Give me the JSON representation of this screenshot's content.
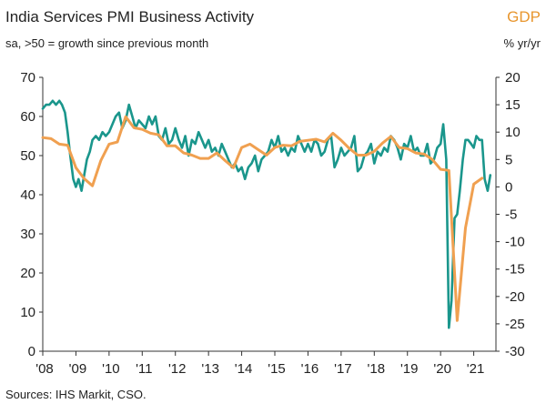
{
  "chart_data": {
    "type": "line",
    "title": "India Services PMI Business Activity",
    "subtitle": "sa, >50 = growth since previous month",
    "right_title": "GDP",
    "right_ylabel": "% yr/yr",
    "source": "Sources: IHS Markit, CSO.",
    "x_ticks": [
      "'08",
      "'09",
      "'10",
      "'11",
      "'12",
      "'13",
      "'14",
      "'15",
      "'16",
      "'17",
      "'18",
      "'19",
      "'20",
      "'21"
    ],
    "xlim": [
      2008.0,
      2021.67
    ],
    "left_axis": {
      "ylim": [
        0,
        70
      ],
      "ticks": [
        0,
        10,
        20,
        30,
        40,
        50,
        60,
        70
      ]
    },
    "right_axis": {
      "ylim": [
        -30,
        20
      ],
      "ticks": [
        -30,
        -25,
        -20,
        -15,
        -10,
        -5,
        0,
        5,
        10,
        15,
        20
      ]
    },
    "grid": false,
    "colors": {
      "pmi": "#1a968c",
      "gdp": "#f0a050",
      "title_gdp": "#e8962e",
      "axis": "#333333"
    },
    "series": [
      {
        "key": "pmi",
        "axis": "left",
        "x": [
          2008.0,
          2008.1,
          2008.2,
          2008.3,
          2008.4,
          2008.5,
          2008.58,
          2008.67,
          2008.75,
          2008.83,
          2008.92,
          2009.0,
          2009.08,
          2009.17,
          2009.25,
          2009.33,
          2009.42,
          2009.5,
          2009.6,
          2009.7,
          2009.8,
          2009.9,
          2010.0,
          2010.1,
          2010.2,
          2010.3,
          2010.4,
          2010.5,
          2010.6,
          2010.7,
          2010.8,
          2010.9,
          2011.0,
          2011.1,
          2011.2,
          2011.3,
          2011.4,
          2011.5,
          2011.6,
          2011.7,
          2011.8,
          2011.9,
          2012.0,
          2012.1,
          2012.2,
          2012.3,
          2012.4,
          2012.5,
          2012.6,
          2012.7,
          2012.8,
          2012.9,
          2013.0,
          2013.1,
          2013.2,
          2013.3,
          2013.4,
          2013.5,
          2013.6,
          2013.7,
          2013.8,
          2013.9,
          2014.0,
          2014.1,
          2014.2,
          2014.3,
          2014.4,
          2014.5,
          2014.6,
          2014.7,
          2014.8,
          2014.9,
          2015.0,
          2015.1,
          2015.2,
          2015.3,
          2015.4,
          2015.5,
          2015.6,
          2015.7,
          2015.8,
          2015.9,
          2016.0,
          2016.1,
          2016.2,
          2016.3,
          2016.4,
          2016.5,
          2016.6,
          2016.7,
          2016.8,
          2016.9,
          2017.0,
          2017.1,
          2017.2,
          2017.3,
          2017.4,
          2017.5,
          2017.6,
          2017.7,
          2017.8,
          2017.9,
          2018.0,
          2018.1,
          2018.2,
          2018.3,
          2018.4,
          2018.5,
          2018.6,
          2018.7,
          2018.8,
          2018.9,
          2019.0,
          2019.1,
          2019.2,
          2019.3,
          2019.4,
          2019.5,
          2019.6,
          2019.7,
          2019.8,
          2019.9,
          2020.0,
          2020.08,
          2020.17,
          2020.25,
          2020.33,
          2020.42,
          2020.5,
          2020.58,
          2020.67,
          2020.75,
          2020.83,
          2020.92,
          2021.0,
          2021.08,
          2021.17,
          2021.25,
          2021.33,
          2021.42,
          2021.5
        ],
        "y": [
          62,
          63,
          63,
          64,
          63,
          64,
          63,
          61,
          56,
          50,
          44,
          42,
          44,
          41,
          45,
          49,
          51,
          54,
          55,
          54,
          56,
          55,
          56,
          58,
          60,
          61,
          57,
          59,
          63,
          60,
          57,
          59,
          58,
          57,
          60,
          58,
          60,
          55,
          54,
          57,
          53,
          54,
          57,
          54,
          52,
          55,
          50,
          54,
          53,
          56,
          54,
          52,
          54,
          51,
          52,
          50,
          53,
          51,
          49,
          47,
          48,
          46,
          47,
          44,
          47,
          48,
          50,
          46,
          49,
          50,
          51,
          54,
          52,
          55,
          51,
          52,
          50,
          52,
          51,
          55,
          53,
          51,
          53,
          51,
          54,
          53,
          50,
          51,
          54,
          55,
          47,
          49,
          52,
          50,
          51,
          52,
          55,
          46,
          47,
          50,
          51,
          53,
          48,
          51,
          50,
          52,
          51,
          55,
          54,
          52,
          49,
          53,
          52,
          55,
          51,
          52,
          50,
          50,
          53,
          48,
          49,
          52,
          53,
          58,
          49,
          6,
          13,
          34,
          35,
          41,
          49,
          54,
          54,
          53,
          52,
          55,
          54,
          54,
          44,
          41,
          45
        ]
      },
      {
        "key": "gdp",
        "axis": "right",
        "x": [
          2008.0,
          2008.25,
          2008.5,
          2008.75,
          2009.0,
          2009.25,
          2009.5,
          2009.75,
          2010.0,
          2010.25,
          2010.5,
          2010.75,
          2011.0,
          2011.25,
          2011.5,
          2011.75,
          2012.0,
          2012.25,
          2012.5,
          2012.75,
          2013.0,
          2013.25,
          2013.5,
          2013.75,
          2014.0,
          2014.25,
          2014.5,
          2014.75,
          2015.0,
          2015.25,
          2015.5,
          2015.75,
          2016.0,
          2016.25,
          2016.5,
          2016.75,
          2017.0,
          2017.25,
          2017.5,
          2017.75,
          2018.0,
          2018.25,
          2018.5,
          2018.75,
          2019.0,
          2019.25,
          2019.5,
          2019.75,
          2020.0,
          2020.25,
          2020.5,
          2020.75,
          2021.0,
          2021.25
        ],
        "y": [
          9,
          8.8,
          7.8,
          7.6,
          3.5,
          1.5,
          0.2,
          4.8,
          7.8,
          8.2,
          12.8,
          10.8,
          10.5,
          9.8,
          9.5,
          7.5,
          7.5,
          6.2,
          5.8,
          5.2,
          5.2,
          6.2,
          4.8,
          3.5,
          7.2,
          7.8,
          6.8,
          5.8,
          7.2,
          7.6,
          7.5,
          8.3,
          8.5,
          8.7,
          8.2,
          9.8,
          8.5,
          7.0,
          5.8,
          5.8,
          6.5,
          8.0,
          9.2,
          7.2,
          7.0,
          6.2,
          6.0,
          5.0,
          3.2,
          3.0,
          -24.4,
          -7.5,
          0.5,
          1.6
        ]
      }
    ]
  }
}
